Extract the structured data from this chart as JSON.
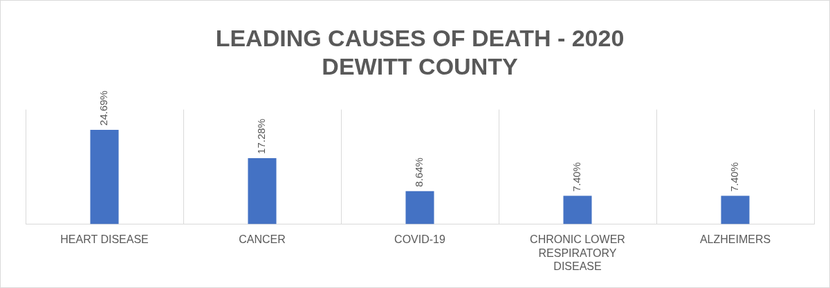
{
  "chart_data": {
    "type": "bar",
    "title": "LEADING CAUSES OF DEATH - 2020\nDEWITT COUNTY",
    "categories": [
      "HEART DISEASE",
      "CANCER",
      "COVID-19",
      "CHRONIC LOWER RESPIRATORY DISEASE",
      "ALZHEIMERS"
    ],
    "values": [
      24.69,
      17.28,
      8.64,
      7.4,
      7.4
    ],
    "value_labels": [
      "24.69%",
      "17.28%",
      "8.64%",
      "7.40%",
      "7.40%"
    ],
    "color": "#4472c4",
    "grid": "x",
    "tick_labels": "x",
    "legend": false
  }
}
